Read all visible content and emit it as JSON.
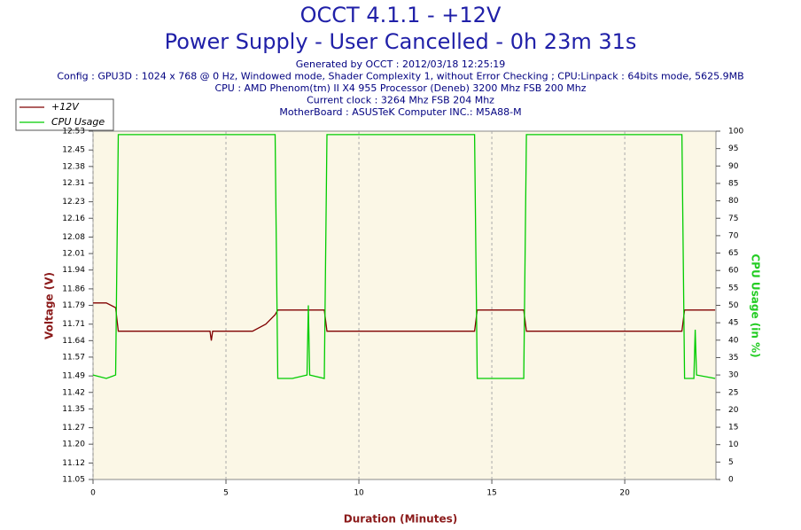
{
  "chart_data": {
    "type": "line",
    "title": "OCCT 4.1.1 - +12V",
    "subtitle": "Power Supply - User Cancelled - 0h 23m 31s",
    "info": [
      "Generated by OCCT : 2012/03/18 12:25:19",
      "Config : GPU3D : 1024 x 768 @ 0 Hz, Windowed mode, Shader Complexity 1, without Error Checking ; CPU:Linpack : 64bits mode, 5625.9MB",
      "CPU : AMD Phenom(tm) II X4 955 Processor (Deneb) 3200 Mhz FSB 200 Mhz",
      "Current clock : 3264 Mhz FSB 204 Mhz",
      "MotherBoard : ASUSTeK Computer INC.: M5A88-M"
    ],
    "xlabel": "Duration (Minutes)",
    "ylabel": "Voltage (V)",
    "y2label": "CPU Usage (in %)",
    "x": [
      0,
      0.5,
      0.85,
      0.95,
      1.5,
      3,
      4.4,
      4.45,
      4.5,
      6.0,
      6.5,
      6.85,
      6.95,
      7.5,
      8.05,
      8.1,
      8.15,
      8.7,
      8.8,
      11,
      14.35,
      14.45,
      16.2,
      16.3,
      19,
      22.15,
      22.25,
      22.6,
      22.65,
      22.7,
      23.4
    ],
    "series": [
      {
        "name": "+12V",
        "color": "#800000",
        "axis": "y",
        "values": [
          11.8,
          11.8,
          11.78,
          11.68,
          11.68,
          11.68,
          11.68,
          11.64,
          11.68,
          11.68,
          11.71,
          11.75,
          11.77,
          11.77,
          11.77,
          11.77,
          11.77,
          11.77,
          11.68,
          11.68,
          11.68,
          11.77,
          11.77,
          11.68,
          11.68,
          11.68,
          11.77,
          11.77,
          11.77,
          11.77,
          11.77
        ]
      },
      {
        "name": "CPU Usage",
        "color": "#00cc00",
        "axis": "y2",
        "values": [
          30,
          29,
          30,
          99,
          99,
          99,
          99,
          99,
          99,
          99,
          99,
          99,
          29,
          29,
          30,
          50,
          30,
          29,
          99,
          99,
          99,
          29,
          29,
          99,
          99,
          99,
          29,
          29,
          43,
          30,
          29
        ]
      }
    ],
    "xlim": [
      0,
      23.43
    ],
    "xticks": [
      0,
      5,
      10,
      15,
      20
    ],
    "ylim": [
      11.05,
      12.53
    ],
    "yticks": [
      11.05,
      11.12,
      {
        "value": 11.2,
        "label": "11.20"
      },
      11.27,
      11.35,
      11.42,
      11.49,
      11.57,
      11.64,
      11.71,
      11.79,
      11.86,
      11.94,
      12.01,
      12.08,
      12.16,
      12.23,
      12.31,
      12.38,
      12.45,
      12.53
    ],
    "y2lim": [
      0,
      100
    ],
    "y2ticks": [
      0,
      5,
      10,
      15,
      20,
      25,
      30,
      35,
      40,
      45,
      50,
      55,
      60,
      65,
      70,
      75,
      80,
      85,
      90,
      95,
      100
    ],
    "grid": true,
    "legend": "top-left"
  }
}
